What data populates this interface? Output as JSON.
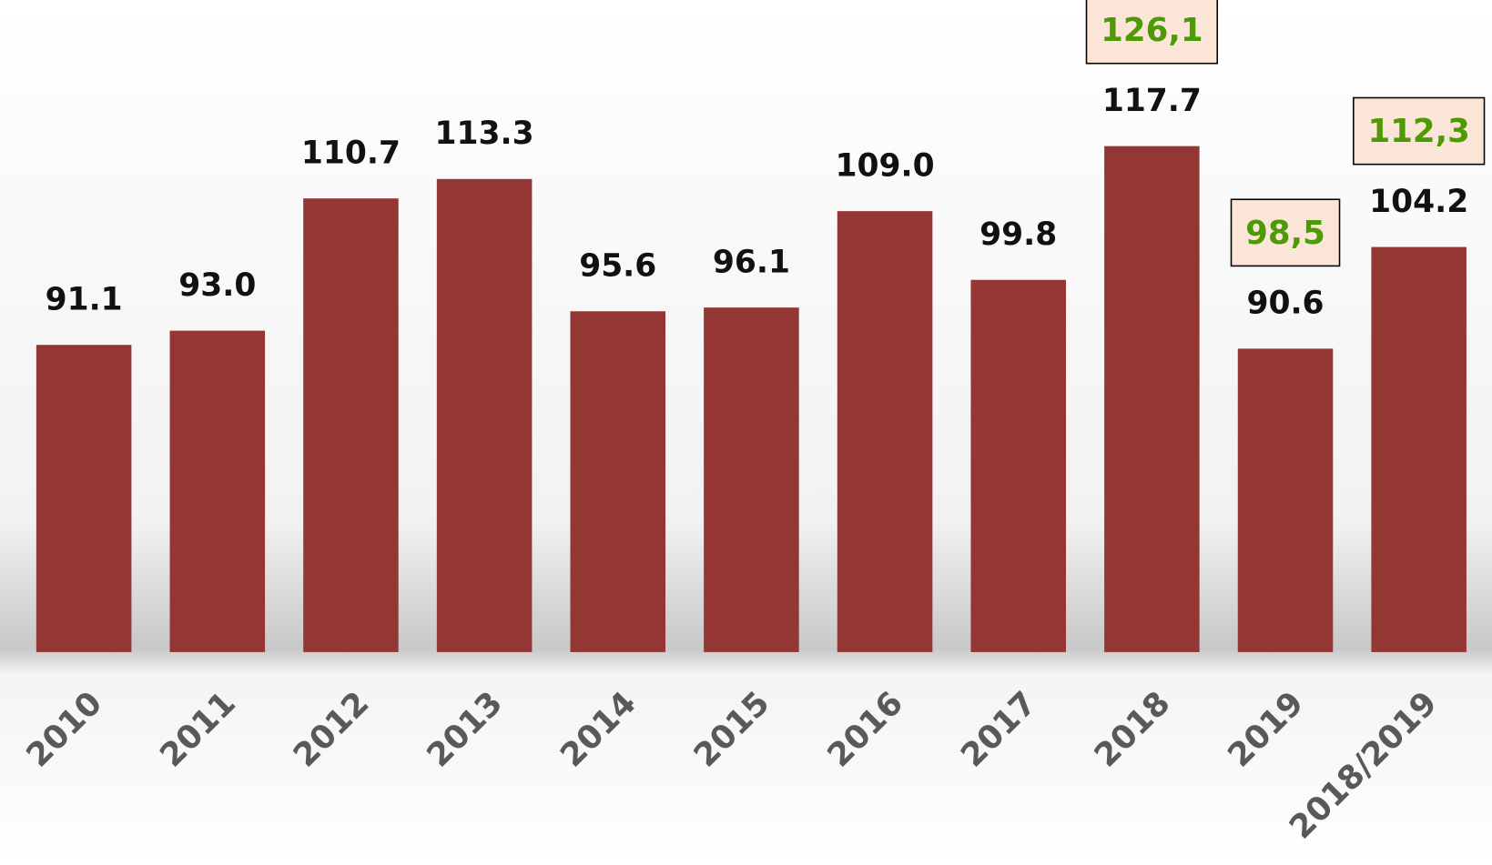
{
  "chart_data": {
    "type": "bar",
    "categories": [
      "2010",
      "2011",
      "2012",
      "2013",
      "2014",
      "2015",
      "2016",
      "2017",
      "2018",
      "2019",
      "2018/2019"
    ],
    "values": [
      91.1,
      93.0,
      110.7,
      113.3,
      95.6,
      96.1,
      109.0,
      99.8,
      117.7,
      90.6,
      104.2
    ],
    "value_labels": [
      "91.1",
      "93.0",
      "110.7",
      "113.3",
      "95.6",
      "96.1",
      "109.0",
      "99.8",
      "117.7",
      "90.6",
      "104.2"
    ],
    "color": "#943634",
    "ylim": [
      50,
      130
    ],
    "annotations": {
      "values": [
        null,
        null,
        null,
        null,
        null,
        null,
        null,
        null,
        126.1,
        98.5,
        112.3
      ],
      "labels": [
        null,
        null,
        null,
        null,
        null,
        null,
        null,
        null,
        "126,1",
        "98,5",
        "112,3"
      ],
      "color": "#4e9a06",
      "box_color": "#fbe5d6"
    }
  }
}
